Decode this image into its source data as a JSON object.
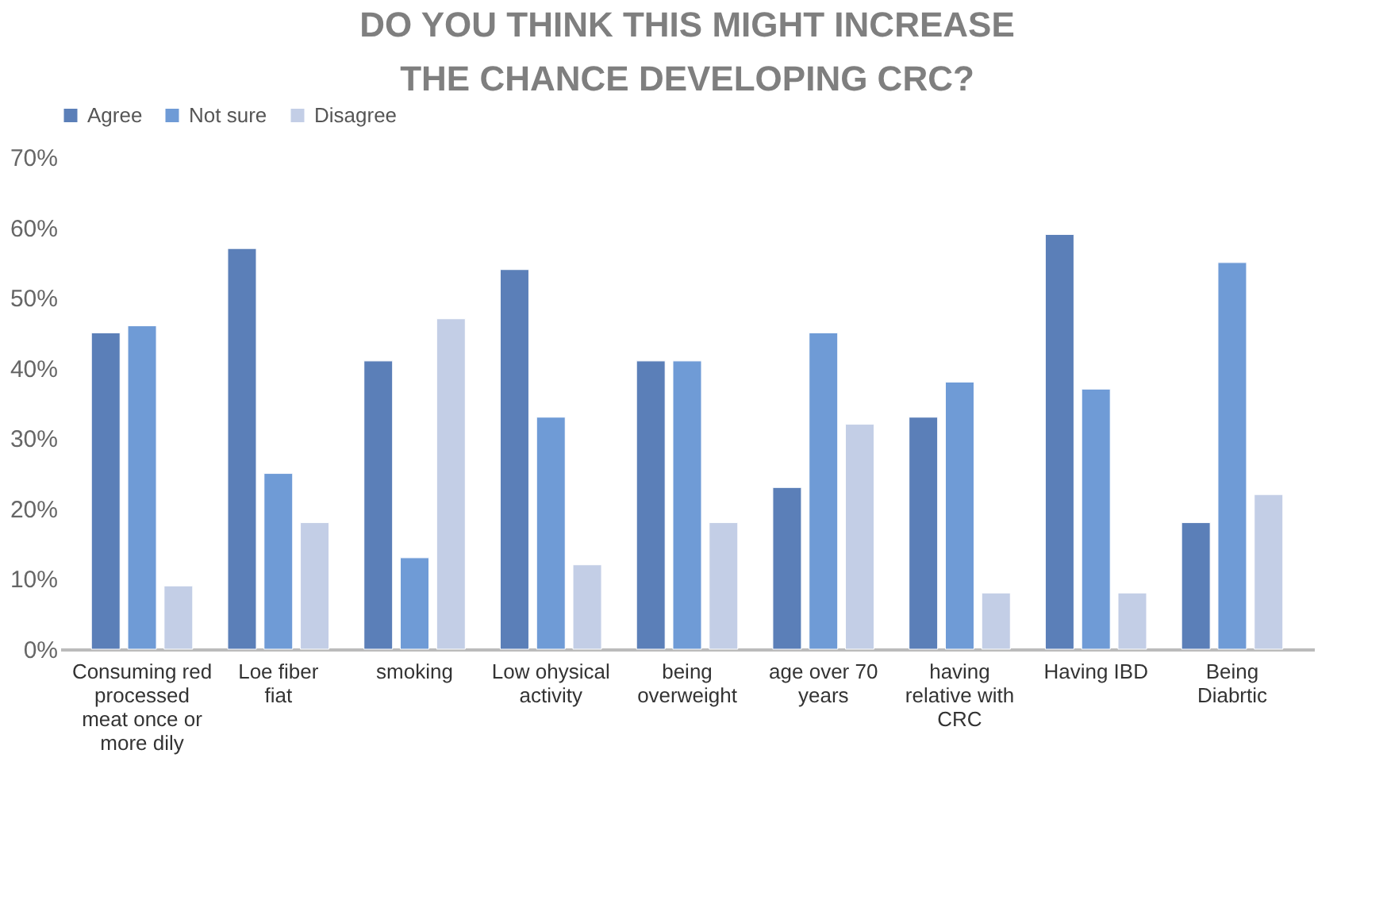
{
  "chart_data": {
    "type": "bar",
    "title": "DO YOU THINK THIS MIGHT INCREASE THE CHANCE DEVELOPING CRC?",
    "categories": [
      "Consuming red processed meat once or more dily",
      "Loe fiber fiat",
      "smoking",
      "Low ohysical activity",
      "being overweight",
      "age over 70 years",
      "having relative with CRC",
      "Having IBD",
      "Being Diabrtic"
    ],
    "series": [
      {
        "name": "Agree",
        "color": "#5b7fb8",
        "values": [
          0.45,
          0.57,
          0.41,
          0.54,
          0.41,
          0.23,
          0.33,
          0.59,
          0.18
        ]
      },
      {
        "name": "Not sure",
        "color": "#6f9bd6",
        "values": [
          0.46,
          0.25,
          0.13,
          0.33,
          0.41,
          0.45,
          0.38,
          0.37,
          0.55
        ]
      },
      {
        "name": "Disagree",
        "color": "#c3cee6",
        "values": [
          0.09,
          0.18,
          0.47,
          0.12,
          0.18,
          0.32,
          0.08,
          0.08,
          0.22
        ]
      }
    ],
    "ylim": [
      0,
      0.7
    ],
    "yticks": [
      {
        "value": 0,
        "label": "0%"
      },
      {
        "value": 0.1,
        "label": "10%"
      },
      {
        "value": 0.2,
        "label": "20%"
      },
      {
        "value": 0.3,
        "label": "30%"
      },
      {
        "value": 0.4,
        "label": "40%"
      },
      {
        "value": 0.5,
        "label": "50%"
      },
      {
        "value": 0.6,
        "label": "60%"
      },
      {
        "value": 0.7,
        "label": "70%"
      }
    ],
    "grid": false,
    "legend": "top"
  }
}
